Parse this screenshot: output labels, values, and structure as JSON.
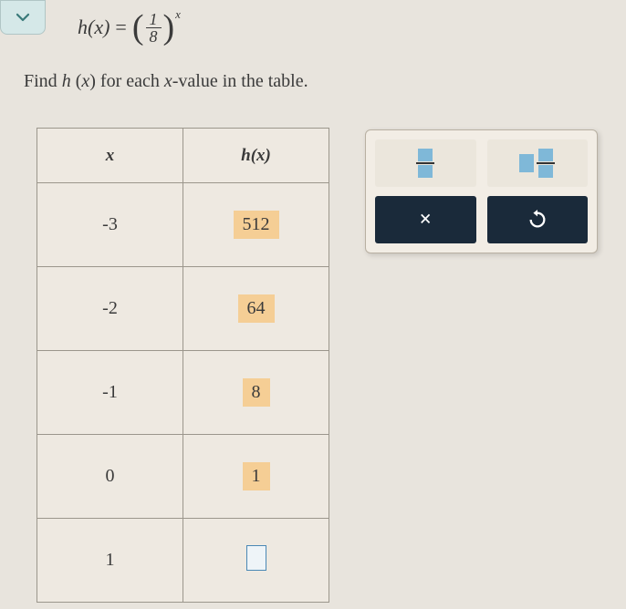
{
  "formula": {
    "lhs_func": "h",
    "lhs_var": "x",
    "frac_num": "1",
    "frac_den": "8",
    "exponent": "x"
  },
  "instruction": {
    "prefix": "Find ",
    "func": "h",
    "var": "x",
    "mid": " for each ",
    "var2": "x",
    "suffix": "-value in the table."
  },
  "table": {
    "headers": {
      "col1": "x",
      "col2_func": "h",
      "col2_var": "x"
    },
    "rows": [
      {
        "x": "-3",
        "hx": "512",
        "filled": true
      },
      {
        "x": "-2",
        "hx": "64",
        "filled": true
      },
      {
        "x": "-1",
        "hx": "8",
        "filled": true
      },
      {
        "x": "0",
        "hx": "1",
        "filled": true
      },
      {
        "x": "1",
        "hx": "",
        "filled": false
      }
    ]
  },
  "tools": {
    "close_symbol": "×",
    "reset_symbol": "↺"
  },
  "colors": {
    "background": "#e8e4dd",
    "border": "#9b968c",
    "highlight": "#f5ce95",
    "input_border": "#4a88b5",
    "dark_btn": "#1a2a3a",
    "tool_box": "#7fb8d8",
    "check_bg": "#d5e8e8"
  }
}
